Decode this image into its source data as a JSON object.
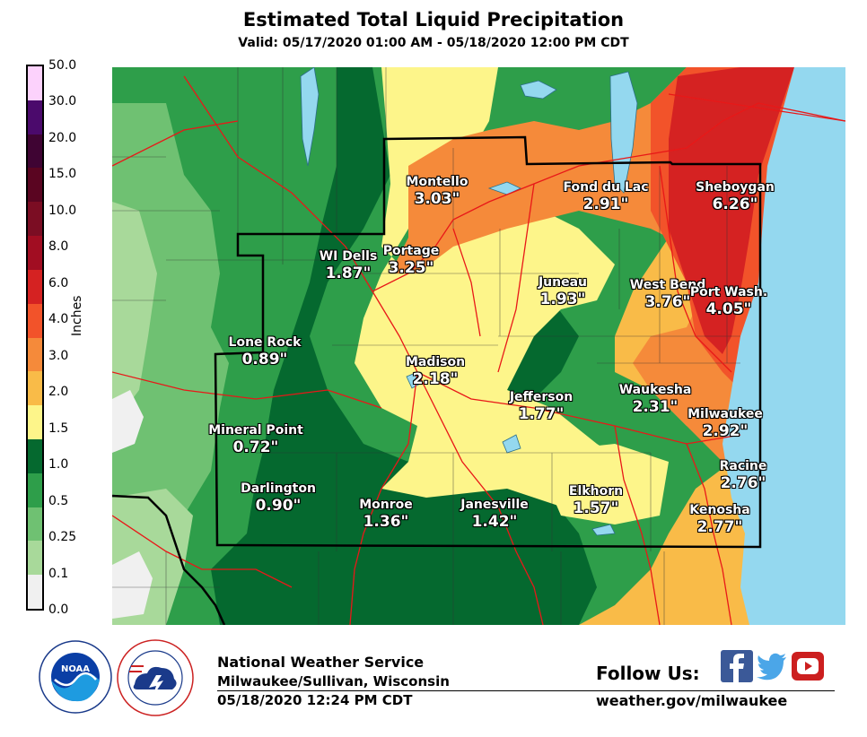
{
  "header": {
    "title": "Estimated Total Liquid Precipitation",
    "valid": "Valid: 05/17/2020 01:00 AM - 05/18/2020 12:00 PM CDT"
  },
  "legend": {
    "title": "Inches",
    "ticks": [
      "50.0",
      "30.0",
      "20.0",
      "15.0",
      "10.0",
      "8.0",
      "6.0",
      "4.0",
      "3.0",
      "2.0",
      "1.5",
      "1.0",
      "0.5",
      "0.25",
      "0.1",
      "0.0"
    ],
    "colors": [
      "#fcd2fc",
      "#4b0a6c",
      "#3f0433",
      "#5a0521",
      "#7b0d23",
      "#a10d22",
      "#d52222",
      "#f2532a",
      "#f58a3a",
      "#f9bb48",
      "#fdf58a",
      "#05692f",
      "#2e9e4a",
      "#6fc172",
      "#a8d99a",
      "#f0f0f0"
    ]
  },
  "cities": [
    {
      "name": "Montello",
      "value": "3.03\""
    },
    {
      "name": "Fond du Lac",
      "value": "2.91\""
    },
    {
      "name": "Sheboygan",
      "value": "6.26\""
    },
    {
      "name": "WI Dells",
      "value": "1.87\""
    },
    {
      "name": "Portage",
      "value": "3.25\""
    },
    {
      "name": "Juneau",
      "value": "1.93\""
    },
    {
      "name": "West Bend",
      "value": "3.76\""
    },
    {
      "name": "Port Wash.",
      "value": "4.05\""
    },
    {
      "name": "Lone Rock",
      "value": "0.89\""
    },
    {
      "name": "Madison",
      "value": "2.18\""
    },
    {
      "name": "Jefferson",
      "value": "1.77\""
    },
    {
      "name": "Waukesha",
      "value": "2.31\""
    },
    {
      "name": "Milwaukee",
      "value": "2.92\""
    },
    {
      "name": "Mineral Point",
      "value": "0.72\""
    },
    {
      "name": "Racine",
      "value": "2.76\""
    },
    {
      "name": "Darlington",
      "value": "0.90\""
    },
    {
      "name": "Monroe",
      "value": "1.36\""
    },
    {
      "name": "Janesville",
      "value": "1.42\""
    },
    {
      "name": "Elkhorn",
      "value": "1.57\""
    },
    {
      "name": "Kenosha",
      "value": "2.77\""
    }
  ],
  "footer": {
    "name": "National Weather Service",
    "office": "Milwaukee/Sullivan, Wisconsin",
    "issued": "05/18/2020 12:24 PM CDT",
    "follow": "Follow Us:",
    "url": "weather.gov/milwaukee"
  },
  "icons": [
    "noaa-logo",
    "nws-logo",
    "facebook-icon",
    "twitter-icon",
    "youtube-icon"
  ]
}
